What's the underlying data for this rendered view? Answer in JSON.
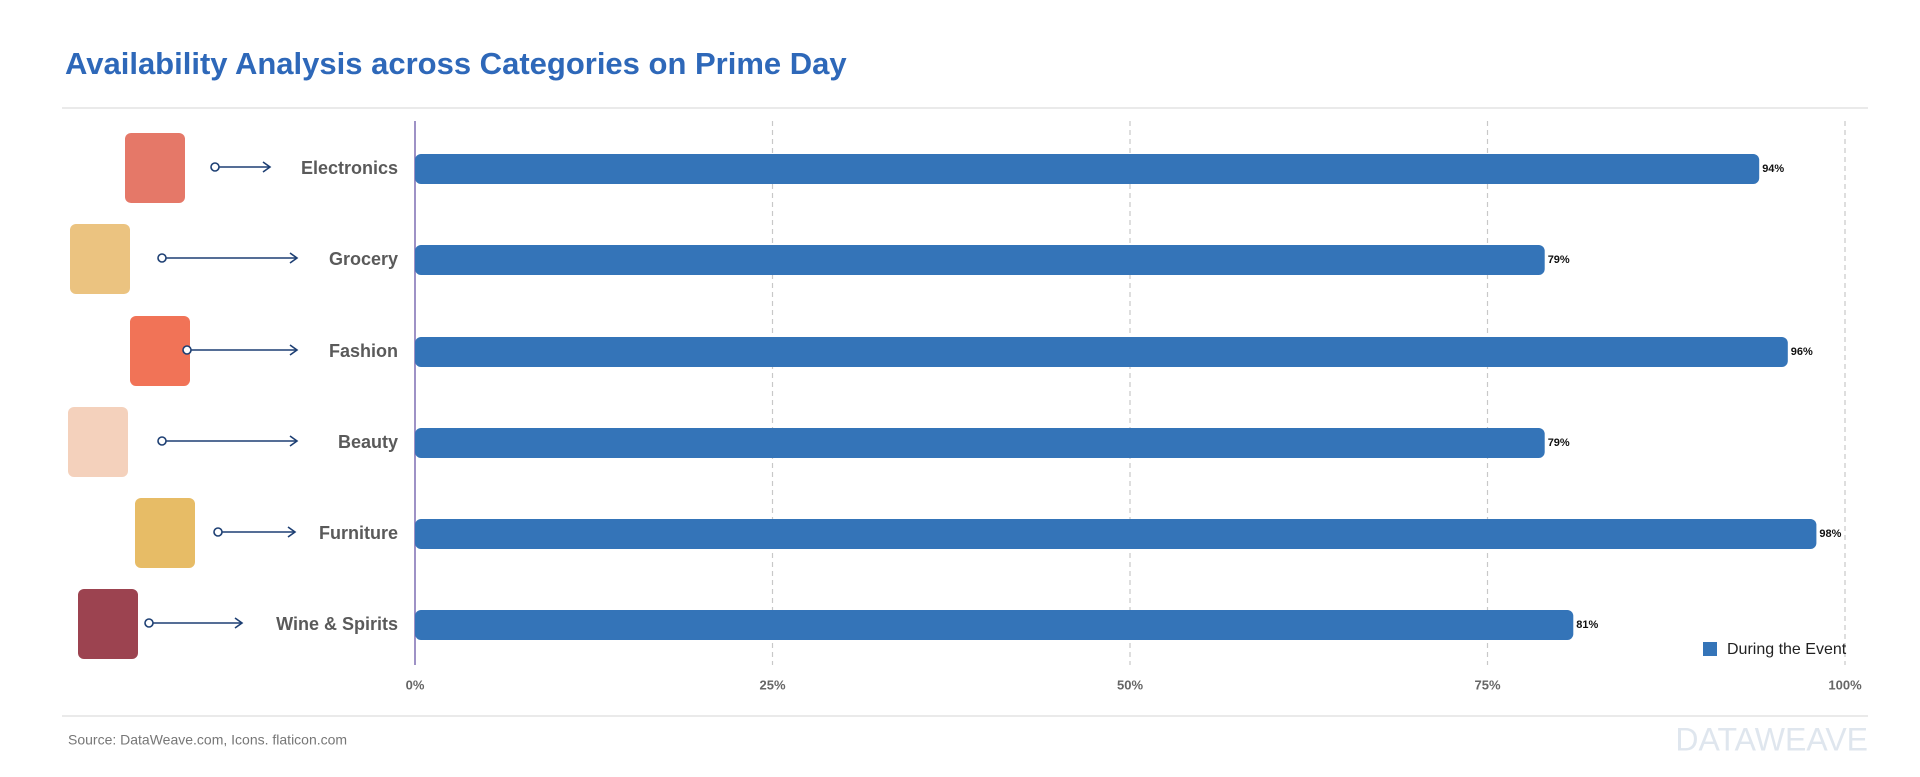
{
  "chart_data": {
    "type": "bar",
    "orientation": "horizontal",
    "title": "Availability Analysis across Categories on Prime Day",
    "categories": [
      "Electronics",
      "Grocery",
      "Fashion",
      "Beauty",
      "Furniture",
      "Wine & Spirits"
    ],
    "series": [
      {
        "name": "During the Event",
        "color": "#3474b8",
        "values": [
          94,
          79,
          96,
          79,
          98,
          81
        ]
      }
    ],
    "value_labels": [
      "94%",
      "79%",
      "96%",
      "79%",
      "98%",
      "81%"
    ],
    "xlim": [
      0,
      100
    ],
    "xticks": [
      {
        "value": 0,
        "label": "0%"
      },
      {
        "value": 25,
        "label": "25%"
      },
      {
        "value": 50,
        "label": "50%"
      },
      {
        "value": 75,
        "label": "75%"
      },
      {
        "value": 100,
        "label": "100%"
      }
    ],
    "grid": true,
    "legend": "bottom-right",
    "source": "Source: DataWeave.com, Icons. flaticon.com",
    "watermark": "DATAWEAVE"
  }
}
